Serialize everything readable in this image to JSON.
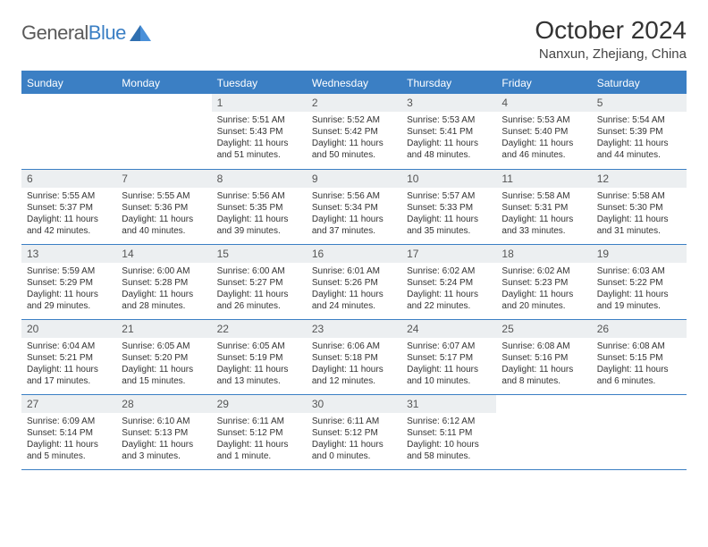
{
  "brand": {
    "part1": "General",
    "part2": "Blue"
  },
  "title": "October 2024",
  "subtitle": "Nanxun, Zhejiang, China",
  "colors": {
    "accent": "#3b7fc4",
    "header_text": "#ffffff",
    "daynum_bg": "#eceff1",
    "text": "#333333",
    "border": "#3b7fc4"
  },
  "weekdays": [
    "Sunday",
    "Monday",
    "Tuesday",
    "Wednesday",
    "Thursday",
    "Friday",
    "Saturday"
  ],
  "grid": [
    [
      null,
      null,
      {
        "d": "1",
        "sr": "5:51 AM",
        "ss": "5:43 PM",
        "dl": "11 hours and 51 minutes."
      },
      {
        "d": "2",
        "sr": "5:52 AM",
        "ss": "5:42 PM",
        "dl": "11 hours and 50 minutes."
      },
      {
        "d": "3",
        "sr": "5:53 AM",
        "ss": "5:41 PM",
        "dl": "11 hours and 48 minutes."
      },
      {
        "d": "4",
        "sr": "5:53 AM",
        "ss": "5:40 PM",
        "dl": "11 hours and 46 minutes."
      },
      {
        "d": "5",
        "sr": "5:54 AM",
        "ss": "5:39 PM",
        "dl": "11 hours and 44 minutes."
      }
    ],
    [
      {
        "d": "6",
        "sr": "5:55 AM",
        "ss": "5:37 PM",
        "dl": "11 hours and 42 minutes."
      },
      {
        "d": "7",
        "sr": "5:55 AM",
        "ss": "5:36 PM",
        "dl": "11 hours and 40 minutes."
      },
      {
        "d": "8",
        "sr": "5:56 AM",
        "ss": "5:35 PM",
        "dl": "11 hours and 39 minutes."
      },
      {
        "d": "9",
        "sr": "5:56 AM",
        "ss": "5:34 PM",
        "dl": "11 hours and 37 minutes."
      },
      {
        "d": "10",
        "sr": "5:57 AM",
        "ss": "5:33 PM",
        "dl": "11 hours and 35 minutes."
      },
      {
        "d": "11",
        "sr": "5:58 AM",
        "ss": "5:31 PM",
        "dl": "11 hours and 33 minutes."
      },
      {
        "d": "12",
        "sr": "5:58 AM",
        "ss": "5:30 PM",
        "dl": "11 hours and 31 minutes."
      }
    ],
    [
      {
        "d": "13",
        "sr": "5:59 AM",
        "ss": "5:29 PM",
        "dl": "11 hours and 29 minutes."
      },
      {
        "d": "14",
        "sr": "6:00 AM",
        "ss": "5:28 PM",
        "dl": "11 hours and 28 minutes."
      },
      {
        "d": "15",
        "sr": "6:00 AM",
        "ss": "5:27 PM",
        "dl": "11 hours and 26 minutes."
      },
      {
        "d": "16",
        "sr": "6:01 AM",
        "ss": "5:26 PM",
        "dl": "11 hours and 24 minutes."
      },
      {
        "d": "17",
        "sr": "6:02 AM",
        "ss": "5:24 PM",
        "dl": "11 hours and 22 minutes."
      },
      {
        "d": "18",
        "sr": "6:02 AM",
        "ss": "5:23 PM",
        "dl": "11 hours and 20 minutes."
      },
      {
        "d": "19",
        "sr": "6:03 AM",
        "ss": "5:22 PM",
        "dl": "11 hours and 19 minutes."
      }
    ],
    [
      {
        "d": "20",
        "sr": "6:04 AM",
        "ss": "5:21 PM",
        "dl": "11 hours and 17 minutes."
      },
      {
        "d": "21",
        "sr": "6:05 AM",
        "ss": "5:20 PM",
        "dl": "11 hours and 15 minutes."
      },
      {
        "d": "22",
        "sr": "6:05 AM",
        "ss": "5:19 PM",
        "dl": "11 hours and 13 minutes."
      },
      {
        "d": "23",
        "sr": "6:06 AM",
        "ss": "5:18 PM",
        "dl": "11 hours and 12 minutes."
      },
      {
        "d": "24",
        "sr": "6:07 AM",
        "ss": "5:17 PM",
        "dl": "11 hours and 10 minutes."
      },
      {
        "d": "25",
        "sr": "6:08 AM",
        "ss": "5:16 PM",
        "dl": "11 hours and 8 minutes."
      },
      {
        "d": "26",
        "sr": "6:08 AM",
        "ss": "5:15 PM",
        "dl": "11 hours and 6 minutes."
      }
    ],
    [
      {
        "d": "27",
        "sr": "6:09 AM",
        "ss": "5:14 PM",
        "dl": "11 hours and 5 minutes."
      },
      {
        "d": "28",
        "sr": "6:10 AM",
        "ss": "5:13 PM",
        "dl": "11 hours and 3 minutes."
      },
      {
        "d": "29",
        "sr": "6:11 AM",
        "ss": "5:12 PM",
        "dl": "11 hours and 1 minute."
      },
      {
        "d": "30",
        "sr": "6:11 AM",
        "ss": "5:12 PM",
        "dl": "11 hours and 0 minutes."
      },
      {
        "d": "31",
        "sr": "6:12 AM",
        "ss": "5:11 PM",
        "dl": "10 hours and 58 minutes."
      },
      null,
      null
    ]
  ],
  "labels": {
    "sunrise": "Sunrise:",
    "sunset": "Sunset:",
    "daylight": "Daylight:"
  }
}
